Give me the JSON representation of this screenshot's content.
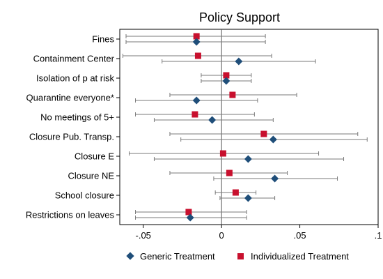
{
  "chart_data": {
    "type": "scatter",
    "title": "Policy Support",
    "categories": [
      "Fines",
      "Containment Center",
      "Isolation of p at risk",
      "Quarantine everyone*",
      "No meetings of 5+",
      "Closure Pub. Transp.",
      "Closure E",
      "Closure NE",
      "School closure",
      "Restrictions on leaves"
    ],
    "xlim": [
      -0.065,
      0.1
    ],
    "xticks": [
      -0.05,
      0,
      0.05,
      0.1
    ],
    "xtick_labels": [
      "-.05",
      "0",
      ".05",
      ".1"
    ],
    "reference_line": 0,
    "series": [
      {
        "name": "Individualized Treatment",
        "marker": "square",
        "color": "#c8102e",
        "estimates": [
          -0.016,
          -0.015,
          0.003,
          0.007,
          -0.017,
          0.027,
          0.001,
          0.005,
          0.009,
          -0.021
        ],
        "ci_low": [
          -0.061,
          -0.063,
          -0.013,
          -0.033,
          -0.055,
          -0.033,
          -0.059,
          -0.033,
          -0.004,
          -0.055
        ],
        "ci_high": [
          0.028,
          0.032,
          0.019,
          0.048,
          0.021,
          0.087,
          0.062,
          0.042,
          0.022,
          0.016
        ]
      },
      {
        "name": "Generic Treatment",
        "marker": "diamond",
        "color": "#1f4e79",
        "estimates": [
          -0.016,
          0.011,
          0.003,
          -0.016,
          -0.006,
          0.033,
          0.017,
          0.034,
          0.017,
          -0.02
        ],
        "ci_low": [
          -0.061,
          -0.038,
          -0.013,
          -0.055,
          -0.043,
          -0.026,
          -0.043,
          -0.005,
          -0.001,
          -0.055
        ],
        "ci_high": [
          0.028,
          0.06,
          0.019,
          0.023,
          0.033,
          0.093,
          0.078,
          0.074,
          0.034,
          0.016
        ]
      }
    ],
    "legend": {
      "position": "bottom",
      "items": [
        "Generic Treatment",
        "Individualized Treatment"
      ]
    },
    "grid": false
  }
}
